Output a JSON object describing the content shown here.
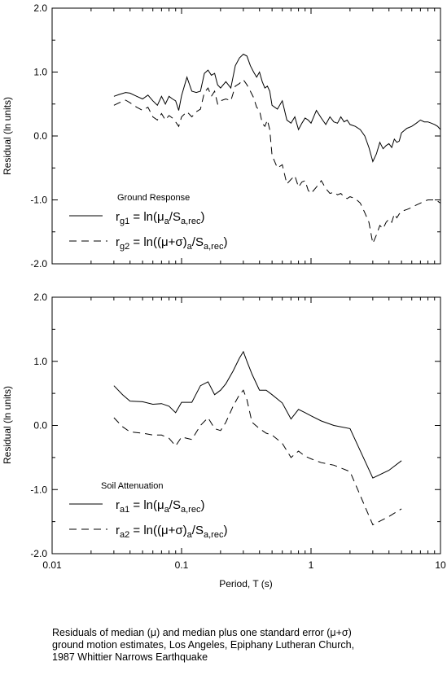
{
  "chart_data": [
    {
      "type": "line",
      "xscale": "log",
      "xlim": [
        0.01,
        10
      ],
      "ylim": [
        -2.0,
        2.0
      ],
      "grid": false,
      "xlabel": "",
      "ylabel": "Residual (ln units)",
      "yticks": [
        "2.0",
        "1.0",
        "0.0",
        "-1.0",
        "-2.0"
      ],
      "xticks": [],
      "legend": {
        "title": "Ground Response",
        "placement": "lower-left",
        "entries": [
          {
            "main": "r",
            "sub": "g1",
            "eq": " = ln(μ",
            "sub2": "a",
            "mid": "/S",
            "sub3": "a,rec",
            "end": ")"
          },
          {
            "main": "r",
            "sub": "g2",
            "eq": " = ln((μ+σ)",
            "sub2": "a",
            "mid": "/S",
            "sub3": "a,rec",
            "end": ")"
          }
        ]
      },
      "series": [
        {
          "style": "solid",
          "x": [
            0.03,
            0.033,
            0.037,
            0.04,
            0.045,
            0.05,
            0.055,
            0.06,
            0.065,
            0.07,
            0.075,
            0.08,
            0.085,
            0.09,
            0.095,
            0.1,
            0.11,
            0.12,
            0.13,
            0.14,
            0.15,
            0.16,
            0.17,
            0.18,
            0.19,
            0.2,
            0.22,
            0.24,
            0.26,
            0.28,
            0.3,
            0.32,
            0.34,
            0.36,
            0.38,
            0.4,
            0.42,
            0.44,
            0.46,
            0.48,
            0.5,
            0.55,
            0.6,
            0.65,
            0.7,
            0.75,
            0.8,
            0.85,
            0.9,
            0.95,
            1.0,
            1.1,
            1.2,
            1.3,
            1.4,
            1.5,
            1.6,
            1.7,
            1.8,
            1.9,
            2.0,
            2.2,
            2.4,
            2.6,
            2.8,
            3.0,
            3.2,
            3.4,
            3.6,
            3.8,
            4.0,
            4.2,
            4.4,
            4.6,
            4.8,
            5.0,
            5.5,
            6.0,
            6.5,
            7.0,
            7.5,
            8.0,
            8.5,
            9.0,
            9.5,
            10.0
          ],
          "y": [
            0.62,
            0.65,
            0.68,
            0.67,
            0.62,
            0.58,
            0.64,
            0.55,
            0.48,
            0.62,
            0.5,
            0.62,
            0.58,
            0.55,
            0.4,
            0.63,
            0.92,
            0.7,
            0.68,
            0.7,
            0.98,
            1.03,
            0.95,
            0.98,
            0.8,
            0.75,
            0.85,
            0.75,
            1.1,
            1.22,
            1.28,
            1.25,
            1.1,
            1.0,
            0.92,
            1.0,
            0.85,
            0.75,
            0.78,
            0.7,
            0.48,
            0.42,
            0.55,
            0.25,
            0.2,
            0.3,
            0.1,
            0.2,
            0.28,
            0.25,
            0.2,
            0.4,
            0.28,
            0.18,
            0.3,
            0.22,
            0.2,
            0.3,
            0.22,
            0.25,
            0.18,
            0.15,
            0.1,
            0.0,
            -0.18,
            -0.4,
            -0.28,
            -0.1,
            -0.2,
            -0.15,
            -0.12,
            -0.18,
            -0.05,
            -0.1,
            -0.08,
            0.05,
            0.12,
            0.15,
            0.2,
            0.25,
            0.22,
            0.22,
            0.2,
            0.18,
            0.15,
            0.1
          ]
        },
        {
          "style": "dashed",
          "x": [
            0.03,
            0.033,
            0.037,
            0.04,
            0.045,
            0.05,
            0.055,
            0.06,
            0.065,
            0.07,
            0.075,
            0.08,
            0.085,
            0.09,
            0.095,
            0.1,
            0.11,
            0.12,
            0.13,
            0.14,
            0.15,
            0.16,
            0.17,
            0.18,
            0.19,
            0.2,
            0.22,
            0.24,
            0.26,
            0.28,
            0.3,
            0.32,
            0.34,
            0.36,
            0.38,
            0.4,
            0.42,
            0.44,
            0.46,
            0.48,
            0.5,
            0.55,
            0.6,
            0.65,
            0.7,
            0.75,
            0.8,
            0.85,
            0.9,
            0.95,
            1.0,
            1.1,
            1.2,
            1.3,
            1.4,
            1.5,
            1.6,
            1.7,
            1.8,
            1.9,
            2.0,
            2.2,
            2.4,
            2.6,
            2.8,
            3.0,
            3.2,
            3.4,
            3.6,
            3.8,
            4.0,
            4.2,
            4.4,
            4.6,
            4.8,
            5.0,
            5.5,
            6.0,
            6.5,
            7.0,
            7.5,
            8.0,
            8.5,
            9.0,
            9.5,
            10.0
          ],
          "y": [
            0.48,
            0.52,
            0.56,
            0.52,
            0.45,
            0.4,
            0.45,
            0.3,
            0.25,
            0.35,
            0.25,
            0.32,
            0.28,
            0.22,
            0.15,
            0.3,
            0.38,
            0.3,
            0.38,
            0.42,
            0.68,
            0.75,
            0.62,
            0.7,
            0.5,
            0.55,
            0.58,
            0.55,
            0.78,
            0.82,
            0.88,
            0.8,
            0.7,
            0.6,
            0.45,
            0.4,
            0.2,
            0.15,
            0.25,
            0.1,
            -0.3,
            -0.5,
            -0.45,
            -0.75,
            -0.68,
            -0.62,
            -0.8,
            -0.72,
            -0.7,
            -0.85,
            -0.9,
            -0.8,
            -0.7,
            -0.82,
            -0.9,
            -0.88,
            -0.92,
            -0.9,
            -0.95,
            -0.98,
            -0.95,
            -0.98,
            -1.05,
            -1.2,
            -1.35,
            -1.68,
            -1.55,
            -1.4,
            -1.45,
            -1.35,
            -1.3,
            -1.35,
            -1.22,
            -1.28,
            -1.22,
            -1.18,
            -1.15,
            -1.12,
            -1.08,
            -1.05,
            -1.02,
            -1.0,
            -1.0,
            -1.0,
            -1.02,
            -1.05
          ]
        }
      ]
    },
    {
      "type": "line",
      "xscale": "log",
      "xlim": [
        0.01,
        10
      ],
      "ylim": [
        -2.0,
        2.0
      ],
      "grid": false,
      "xlabel": "Period, T (s)",
      "ylabel": "Residual (ln units)",
      "yticks": [
        "2.0",
        "1.0",
        "0.0",
        "-1.0",
        "-2.0"
      ],
      "xticks": [
        "0.01",
        "0.1",
        "1",
        "10"
      ],
      "legend": {
        "title": "Soil Attenuation",
        "placement": "lower-left",
        "entries": [
          {
            "main": "r",
            "sub": "a1",
            "eq": " = ln(μ",
            "sub2": "a",
            "mid": "/S",
            "sub3": "a,rec",
            "end": ")"
          },
          {
            "main": "r",
            "sub": "a2",
            "eq": " = ln((μ+σ)",
            "sub2": "a",
            "mid": "/S",
            "sub3": "a,rec",
            "end": ")"
          }
        ]
      },
      "series": [
        {
          "style": "solid",
          "x": [
            0.03,
            0.035,
            0.04,
            0.05,
            0.06,
            0.07,
            0.08,
            0.09,
            0.1,
            0.12,
            0.14,
            0.16,
            0.18,
            0.2,
            0.22,
            0.25,
            0.28,
            0.3,
            0.32,
            0.35,
            0.4,
            0.45,
            0.5,
            0.6,
            0.7,
            0.8,
            0.9,
            1.0,
            1.2,
            1.5,
            2.0,
            3.0,
            4.0,
            5.0
          ],
          "y": [
            0.62,
            0.48,
            0.38,
            0.37,
            0.33,
            0.34,
            0.3,
            0.2,
            0.36,
            0.36,
            0.62,
            0.68,
            0.48,
            0.55,
            0.65,
            0.85,
            1.05,
            1.15,
            1.0,
            0.8,
            0.55,
            0.55,
            0.48,
            0.35,
            0.1,
            0.25,
            0.2,
            0.15,
            0.07,
            0.0,
            -0.05,
            -0.82,
            -0.7,
            -0.55
          ]
        },
        {
          "style": "dashed",
          "x": [
            0.03,
            0.035,
            0.04,
            0.05,
            0.06,
            0.07,
            0.08,
            0.09,
            0.1,
            0.12,
            0.14,
            0.16,
            0.18,
            0.2,
            0.22,
            0.25,
            0.28,
            0.3,
            0.32,
            0.35,
            0.4,
            0.45,
            0.5,
            0.6,
            0.7,
            0.8,
            0.9,
            1.0,
            1.2,
            1.5,
            2.0,
            3.0,
            4.0,
            5.0
          ],
          "y": [
            0.12,
            -0.02,
            -0.1,
            -0.12,
            -0.15,
            -0.15,
            -0.2,
            -0.32,
            -0.18,
            -0.22,
            0.0,
            0.12,
            -0.05,
            -0.08,
            0.05,
            0.3,
            0.48,
            0.55,
            0.4,
            0.05,
            -0.05,
            -0.12,
            -0.15,
            -0.28,
            -0.5,
            -0.4,
            -0.48,
            -0.52,
            -0.58,
            -0.62,
            -0.72,
            -1.55,
            -1.42,
            -1.3
          ]
        }
      ]
    }
  ],
  "caption": {
    "lines": [
      "Residuals of median (μ) and median plus one standard error (μ+σ)",
      "ground motion estimates, Los Angeles, Epiphany Lutheran Church,",
      "1987 Whittier Narrows Earthquake"
    ]
  }
}
